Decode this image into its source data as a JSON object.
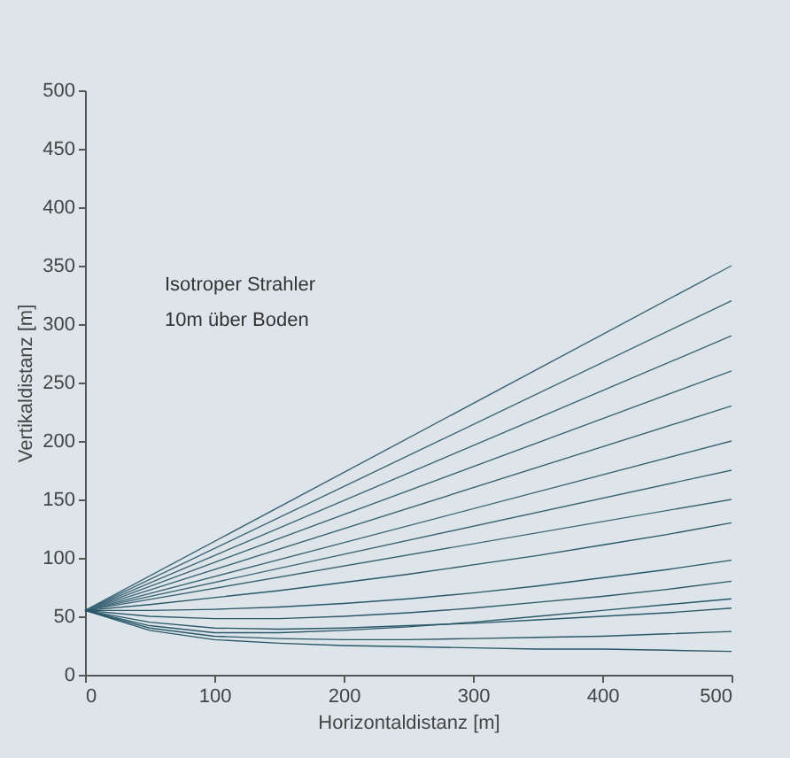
{
  "chart_data": {
    "type": "line",
    "xlabel": "Horizontaldistanz [m]",
    "ylabel": "Vertikaldistanz [m]",
    "annotations": [
      "Isotroper Strahler",
      "10m über Boden"
    ],
    "xlim": [
      0,
      500
    ],
    "ylim": [
      0,
      500
    ],
    "xticks": [
      0,
      100,
      200,
      300,
      400,
      500
    ],
    "yticks": [
      0,
      50,
      100,
      150,
      200,
      250,
      300,
      350,
      400,
      450,
      500
    ],
    "grid": false,
    "legend": false,
    "marker": "none",
    "line_style": "solid",
    "series": [
      {
        "color": "#3d6575",
        "x": [
          0,
          500
        ],
        "values": [
          55,
          350
        ]
      },
      {
        "color": "#3d6575",
        "x": [
          0,
          500
        ],
        "values": [
          55,
          320
        ]
      },
      {
        "color": "#3d6575",
        "x": [
          0,
          500
        ],
        "values": [
          55,
          290
        ]
      },
      {
        "color": "#3d6575",
        "x": [
          0,
          500
        ],
        "values": [
          55,
          260
        ]
      },
      {
        "color": "#3d6575",
        "x": [
          0,
          500
        ],
        "values": [
          55,
          230
        ]
      },
      {
        "color": "#3d6575",
        "x": [
          0,
          500
        ],
        "values": [
          55,
          200
        ]
      },
      {
        "color": "#3d6575",
        "x": [
          0,
          500
        ],
        "values": [
          55,
          175
        ]
      },
      {
        "color": "#3d6575",
        "x": [
          0,
          500
        ],
        "values": [
          55,
          150
        ]
      },
      {
        "color": "#2a5868",
        "x": [
          0,
          50,
          100,
          150,
          200,
          250,
          300,
          350,
          400,
          450,
          500
        ],
        "values": [
          55,
          60,
          66,
          72,
          79,
          86,
          94,
          102,
          111,
          120,
          130
        ]
      },
      {
        "color": "#2a5868",
        "x": [
          0,
          50,
          100,
          150,
          200,
          250,
          300,
          350,
          400,
          450,
          500
        ],
        "values": [
          55,
          55,
          56,
          58,
          61,
          65,
          70,
          76,
          83,
          90,
          98
        ]
      },
      {
        "color": "#2a5868",
        "x": [
          0,
          50,
          100,
          150,
          200,
          250,
          300,
          350,
          400,
          450,
          500
        ],
        "values": [
          55,
          50,
          48,
          48,
          50,
          53,
          57,
          62,
          67,
          73,
          80
        ]
      },
      {
        "color": "#2a5868",
        "x": [
          0,
          50,
          100,
          150,
          200,
          250,
          300,
          350,
          400,
          450,
          500
        ],
        "values": [
          55,
          42,
          36,
          36,
          38,
          41,
          45,
          50,
          55,
          60,
          65
        ]
      },
      {
        "color": "#2a5868",
        "x": [
          0,
          50,
          100,
          150,
          200,
          250,
          300,
          350,
          400,
          450,
          500
        ],
        "values": [
          55,
          45,
          40,
          39,
          40,
          42,
          44,
          47,
          50,
          53,
          57
        ]
      },
      {
        "color": "#2a5868",
        "x": [
          0,
          50,
          100,
          150,
          200,
          250,
          300,
          350,
          400,
          450,
          500
        ],
        "values": [
          55,
          40,
          33,
          31,
          30,
          30,
          31,
          32,
          33,
          35,
          37
        ]
      },
      {
        "color": "#2a5868",
        "x": [
          0,
          50,
          100,
          150,
          200,
          250,
          300,
          350,
          400,
          450,
          500
        ],
        "values": [
          55,
          38,
          30,
          27,
          25,
          24,
          23,
          22,
          22,
          21,
          20
        ]
      }
    ]
  }
}
